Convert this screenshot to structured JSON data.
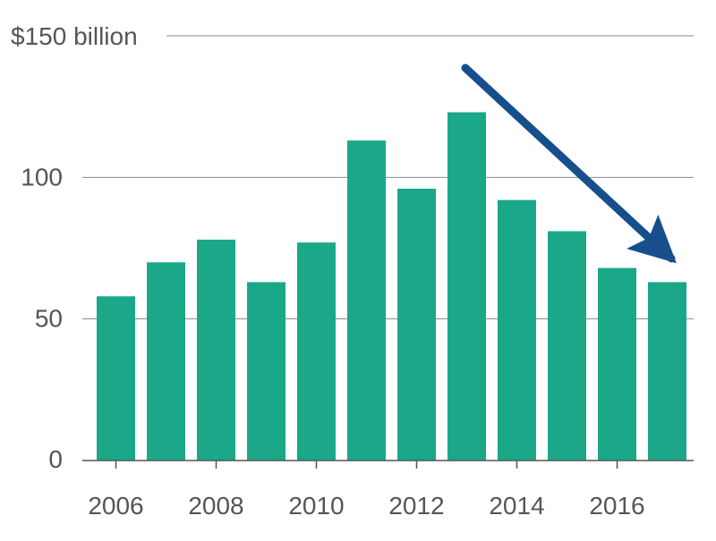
{
  "chart_data": {
    "type": "bar",
    "title": "",
    "xlabel": "",
    "ylabel": "",
    "categories": [
      "2006",
      "2007",
      "2008",
      "2009",
      "2010",
      "2011",
      "2012",
      "2013",
      "2014",
      "2015",
      "2016",
      "2017"
    ],
    "values": [
      58,
      70,
      78,
      63,
      77,
      113,
      96,
      123,
      92,
      81,
      68,
      63
    ],
    "ylim": [
      0,
      150
    ],
    "y_ticks": [
      {
        "value": 0,
        "label": "0"
      },
      {
        "value": 50,
        "label": "50"
      },
      {
        "value": 100,
        "label": "100"
      },
      {
        "value": 150,
        "label": "$150 billion"
      }
    ],
    "x_tick_labels": [
      "2006",
      "2008",
      "2010",
      "2012",
      "2014",
      "2016"
    ],
    "grid": true,
    "annotation": {
      "type": "arrow",
      "meaning": "downward trend from 2013 to 2017",
      "from_category": "2013",
      "to_category": "2017"
    },
    "colors": {
      "bar": "#1aa889",
      "arrow": "#174f8c",
      "grid": "#888888",
      "text": "#555555"
    }
  }
}
